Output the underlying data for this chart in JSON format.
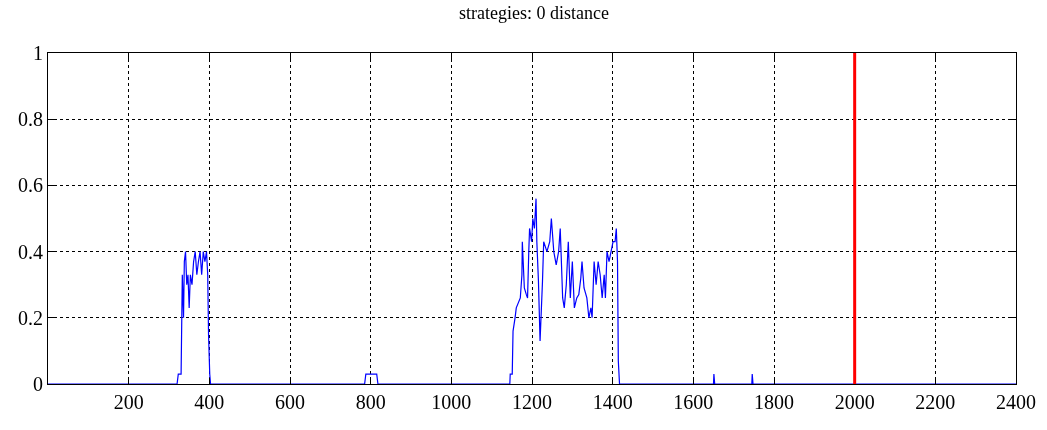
{
  "chart_data": {
    "type": "line",
    "title": "strategies: 0 distance",
    "xlim": [
      0,
      2400
    ],
    "xticks": [
      200,
      400,
      600,
      800,
      1000,
      1200,
      1400,
      1600,
      1800,
      2000,
      2200,
      2400
    ],
    "ylim": [
      0,
      1
    ],
    "yticks": [
      0,
      0.2,
      0.4,
      0.6,
      0.8,
      1
    ],
    "grid": true,
    "marker": "none",
    "line_style": "solid",
    "ref_lines": [
      {
        "axis": "x",
        "value": 2000,
        "color": "#ff0000"
      }
    ],
    "series": [
      {
        "color": "#0000ff",
        "x": [
          0,
          320,
          323,
          330,
          333,
          336,
          338,
          341,
          344,
          347,
          350,
          353,
          357,
          361,
          365,
          369,
          373,
          377,
          381,
          385,
          389,
          393,
          396,
          398,
          401,
          403,
          785,
          788,
          815,
          818,
          1145,
          1146,
          1151,
          1153,
          1158,
          1161,
          1171,
          1175,
          1176,
          1181,
          1186,
          1189,
          1192,
          1194,
          1199,
          1202,
          1206,
          1210,
          1212,
          1216,
          1220,
          1226,
          1229,
          1237,
          1244,
          1248,
          1254,
          1260,
          1266,
          1270,
          1276,
          1280,
          1285,
          1290,
          1295,
          1300,
          1305,
          1311,
          1316,
          1321,
          1324,
          1329,
          1336,
          1341,
          1346,
          1349,
          1354,
          1359,
          1364,
          1369,
          1374,
          1379,
          1382,
          1386,
          1391,
          1396,
          1401,
          1406,
          1409,
          1412,
          1414,
          1417,
          1650,
          1651,
          1653,
          1745,
          1746,
          1748,
          2400
        ],
        "values": [
          0,
          0,
          0.03,
          0.03,
          0.33,
          0.2,
          0.37,
          0.4,
          0.3,
          0.33,
          0.23,
          0.33,
          0.3,
          0.37,
          0.4,
          0.33,
          0.37,
          0.4,
          0.33,
          0.4,
          0.37,
          0.4,
          0.33,
          0.15,
          0.03,
          0,
          0,
          0.03,
          0.03,
          0,
          0,
          0.03,
          0.03,
          0.16,
          0.2,
          0.23,
          0.26,
          0.33,
          0.43,
          0.29,
          0.27,
          0.26,
          0.4,
          0.47,
          0.43,
          0.5,
          0.47,
          0.56,
          0.43,
          0.31,
          0.13,
          0.31,
          0.43,
          0.4,
          0.43,
          0.5,
          0.4,
          0.36,
          0.4,
          0.47,
          0.26,
          0.23,
          0.3,
          0.43,
          0.26,
          0.37,
          0.23,
          0.26,
          0.27,
          0.32,
          0.37,
          0.29,
          0.26,
          0.2,
          0.23,
          0.2,
          0.37,
          0.3,
          0.37,
          0.33,
          0.26,
          0.33,
          0.26,
          0.4,
          0.37,
          0.4,
          0.43,
          0.43,
          0.47,
          0.37,
          0.07,
          0,
          0,
          0.03,
          0,
          0,
          0.03,
          0,
          0
        ]
      }
    ]
  }
}
